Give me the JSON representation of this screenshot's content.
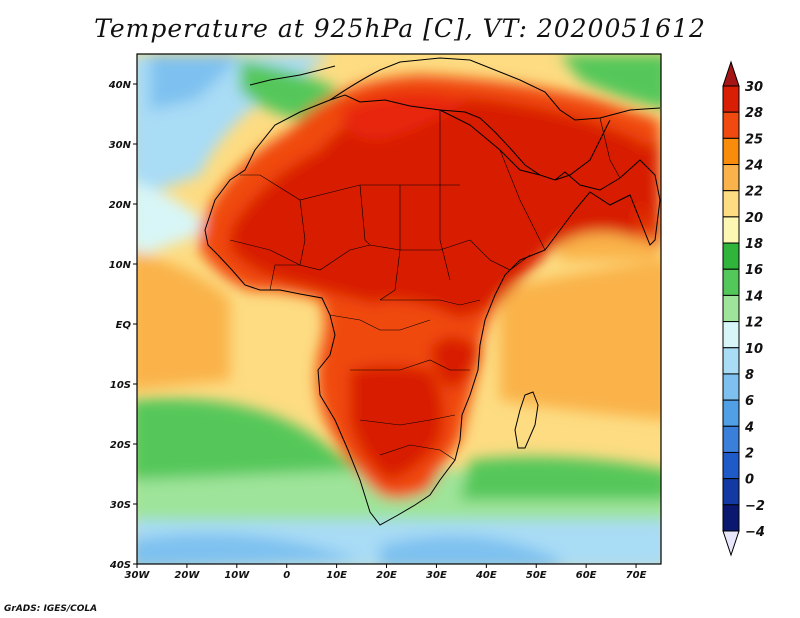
{
  "title": "Temperature at 925hPa [C], VT: 2020051612",
  "credit": "GrADS: IGES/COLA",
  "map": {
    "lon_range": [
      -30,
      75
    ],
    "lat_range": [
      -40,
      45
    ],
    "lon_ticks": [
      {
        "value": -30,
        "label": "30W"
      },
      {
        "value": -20,
        "label": "20W"
      },
      {
        "value": -10,
        "label": "10W"
      },
      {
        "value": 0,
        "label": "0"
      },
      {
        "value": 10,
        "label": "10E"
      },
      {
        "value": 20,
        "label": "20E"
      },
      {
        "value": 30,
        "label": "30E"
      },
      {
        "value": 40,
        "label": "40E"
      },
      {
        "value": 50,
        "label": "50E"
      },
      {
        "value": 60,
        "label": "60E"
      },
      {
        "value": 70,
        "label": "70E"
      }
    ],
    "lat_ticks": [
      {
        "value": -40,
        "label": "40S"
      },
      {
        "value": -30,
        "label": "30S"
      },
      {
        "value": -20,
        "label": "20S"
      },
      {
        "value": -10,
        "label": "10S"
      },
      {
        "value": 0,
        "label": "EQ"
      },
      {
        "value": 10,
        "label": "10N"
      },
      {
        "value": 20,
        "label": "20N"
      },
      {
        "value": 30,
        "label": "30N"
      },
      {
        "value": 40,
        "label": "40N"
      }
    ]
  },
  "colorbar": {
    "levels": [
      {
        "label": "30",
        "color": "#a51515"
      },
      {
        "label": "28",
        "color": "#d81e05"
      },
      {
        "label": "25",
        "color": "#f04a10"
      },
      {
        "label": "24",
        "color": "#f98c0a"
      },
      {
        "label": "22",
        "color": "#fab24a"
      },
      {
        "label": "20",
        "color": "#fddc82"
      },
      {
        "label": "18",
        "color": "#fcf7b2"
      },
      {
        "label": "16",
        "color": "#2fb53c"
      },
      {
        "label": "14",
        "color": "#54c75a"
      },
      {
        "label": "12",
        "color": "#9ee49a"
      },
      {
        "label": "10",
        "color": "#d8f6f7"
      },
      {
        "label": "8",
        "color": "#a9dcf5"
      },
      {
        "label": "6",
        "color": "#7ec1f0"
      },
      {
        "label": "4",
        "color": "#519fe5"
      },
      {
        "label": "2",
        "color": "#3a7fda"
      },
      {
        "label": "0",
        "color": "#1f5bc8"
      },
      {
        "label": "−2",
        "color": "#123aa2"
      },
      {
        "label": "−4",
        "color": "#0a1870"
      }
    ],
    "top_color": "#a51515",
    "bottom_color": "#e8e6fa"
  }
}
